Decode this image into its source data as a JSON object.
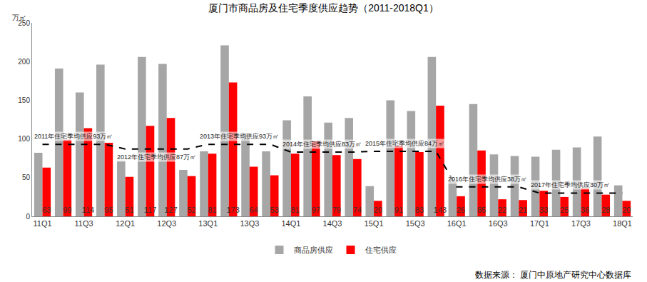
{
  "chart_data": {
    "type": "bar",
    "title": "厦门市商品房及住宅季度供应趋势（2011-2018Q1）",
    "y_label": "万㎡",
    "source": "数据来源： 厦门中原地产研究中心数据库",
    "categories": [
      "11Q1",
      null,
      "11Q3",
      null,
      "12Q1",
      null,
      "12Q3",
      null,
      "13Q1",
      null,
      "13Q3",
      null,
      "14Q1",
      null,
      "14Q3",
      null,
      "15Q1",
      null,
      "15Q3",
      null,
      "16Q1",
      null,
      "16Q3",
      null,
      "17Q1",
      null,
      "17Q3",
      null,
      "18Q1"
    ],
    "series": [
      {
        "name": "商品房供应",
        "type": "bar",
        "color": "#a6a6a6",
        "values": [
          82,
          191,
          160,
          196,
          72,
          206,
          197,
          60,
          84,
          221,
          108,
          84,
          124,
          155,
          121,
          127,
          39,
          150,
          136,
          206,
          45,
          145,
          80,
          78,
          77,
          86,
          89,
          103,
          40
        ]
      },
      {
        "name": "住宅供应",
        "type": "bar",
        "color": "#ff0000",
        "data_labels": true,
        "values": [
          63,
          99,
          114,
          95,
          51,
          117,
          127,
          52,
          81,
          173,
          64,
          53,
          81,
          97,
          79,
          74,
          20,
          91,
          83,
          143,
          26,
          85,
          22,
          21,
          33,
          25,
          36,
          28,
          20
        ]
      },
      {
        "type": "line",
        "line_style": "dashed",
        "color": "#000000",
        "values": [
          93,
          93,
          93,
          93,
          87,
          87,
          87,
          87,
          93,
          93,
          93,
          93,
          83,
          83,
          83,
          83,
          84,
          84,
          84,
          84,
          38,
          38,
          38,
          38,
          30,
          30,
          30,
          30,
          30
        ]
      }
    ],
    "annotations": [
      "2011年住宅季均供应93万㎡",
      "2012年住宅季均供应87万㎡",
      "2013年住宅季均供应93万㎡",
      "2014年住宅季均供应83万㎡",
      "2015年住宅季均供应84万㎡",
      "2016年住宅季均供应38万㎡",
      "2017年住宅季均供应30万㎡"
    ],
    "ylim": [
      0,
      250
    ],
    "yticks": [
      0,
      50,
      100,
      150,
      200,
      250
    ],
    "grid": false,
    "legend": "bottom"
  }
}
